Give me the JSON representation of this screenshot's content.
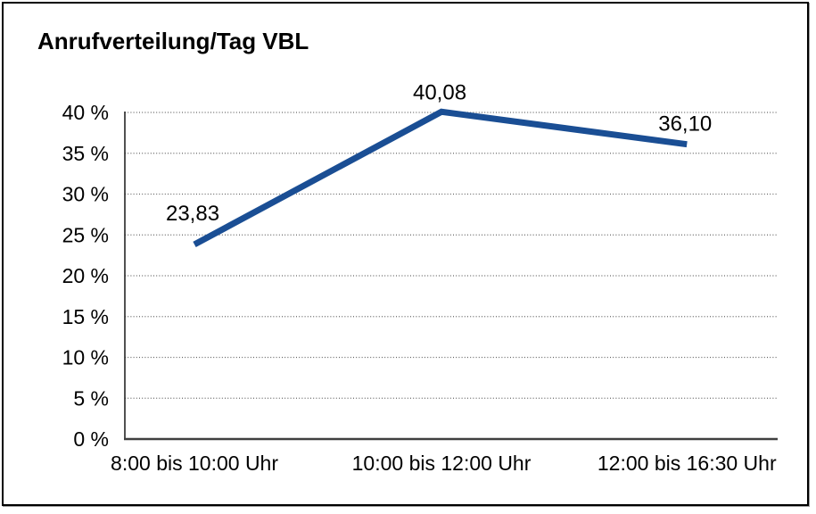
{
  "title": "Anrufverteilung/Tag VBL",
  "frame": {
    "border_color": "#000000",
    "background": "#ffffff"
  },
  "chart_data": {
    "type": "line",
    "title": "Anrufverteilung/Tag VBL",
    "categories": [
      "8:00 bis 10:00 Uhr",
      "10:00 bis 12:00 Uhr",
      "12:00 bis 16:30 Uhr"
    ],
    "series": [
      {
        "name": "Anrufverteilung",
        "values": [
          23.83,
          40.08,
          36.1
        ]
      }
    ],
    "data_labels": [
      "23,83",
      "40,08",
      "36,10"
    ],
    "xlabel": "",
    "ylabel": "",
    "ylim": [
      0,
      40
    ],
    "y_tick_step": 5,
    "y_tick_labels": [
      "0 %",
      "5 %",
      "10 %",
      "15 %",
      "20 %",
      "25 %",
      "30 %",
      "35 %",
      "40 %"
    ],
    "grid": "horizontal-dotted",
    "legend": "none",
    "colors": {
      "line": "#1a4e94",
      "gridline": "#666666",
      "axis_left": "#262626",
      "axis_bottom": "#404040",
      "text": "#000000"
    },
    "line_width": 7
  }
}
